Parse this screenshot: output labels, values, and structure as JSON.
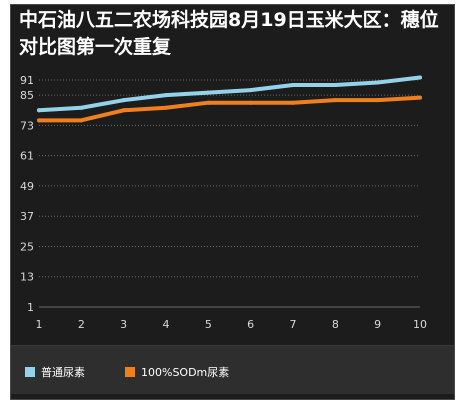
{
  "colors": {
    "background": "#1c1c1c",
    "grid": "#6a6a6a",
    "axis_text": "#d8d8d8",
    "legend_background": "#2e2e2e"
  },
  "chart_data": {
    "type": "line",
    "title": "中石油八五二农场科技园8月19日玉米大区：穗位对比图第一次重复",
    "xlabel": "",
    "ylabel": "",
    "x": [
      1,
      2,
      3,
      4,
      5,
      6,
      7,
      8,
      9,
      10
    ],
    "x_tick_labels": [
      "1",
      "2",
      "3",
      "4",
      "5",
      "6",
      "7",
      "8",
      "9",
      "10"
    ],
    "y_tick_labels": [
      "1",
      "13",
      "25",
      "37",
      "49",
      "61",
      "73",
      "85",
      "91"
    ],
    "y_ticks": [
      1,
      13,
      25,
      37,
      49,
      61,
      73,
      85,
      91
    ],
    "ylim": [
      1,
      91
    ],
    "grid": true,
    "legend_position": "bottom",
    "series": [
      {
        "name": "普通尿素",
        "color": "#93d3ea",
        "values": [
          79,
          80,
          83,
          85,
          86,
          87,
          89,
          89,
          90,
          92
        ]
      },
      {
        "name": "100%SODm尿素",
        "color": "#f0801e",
        "values": [
          75,
          75,
          79,
          80,
          82,
          82,
          82,
          83,
          83,
          84
        ]
      }
    ]
  }
}
